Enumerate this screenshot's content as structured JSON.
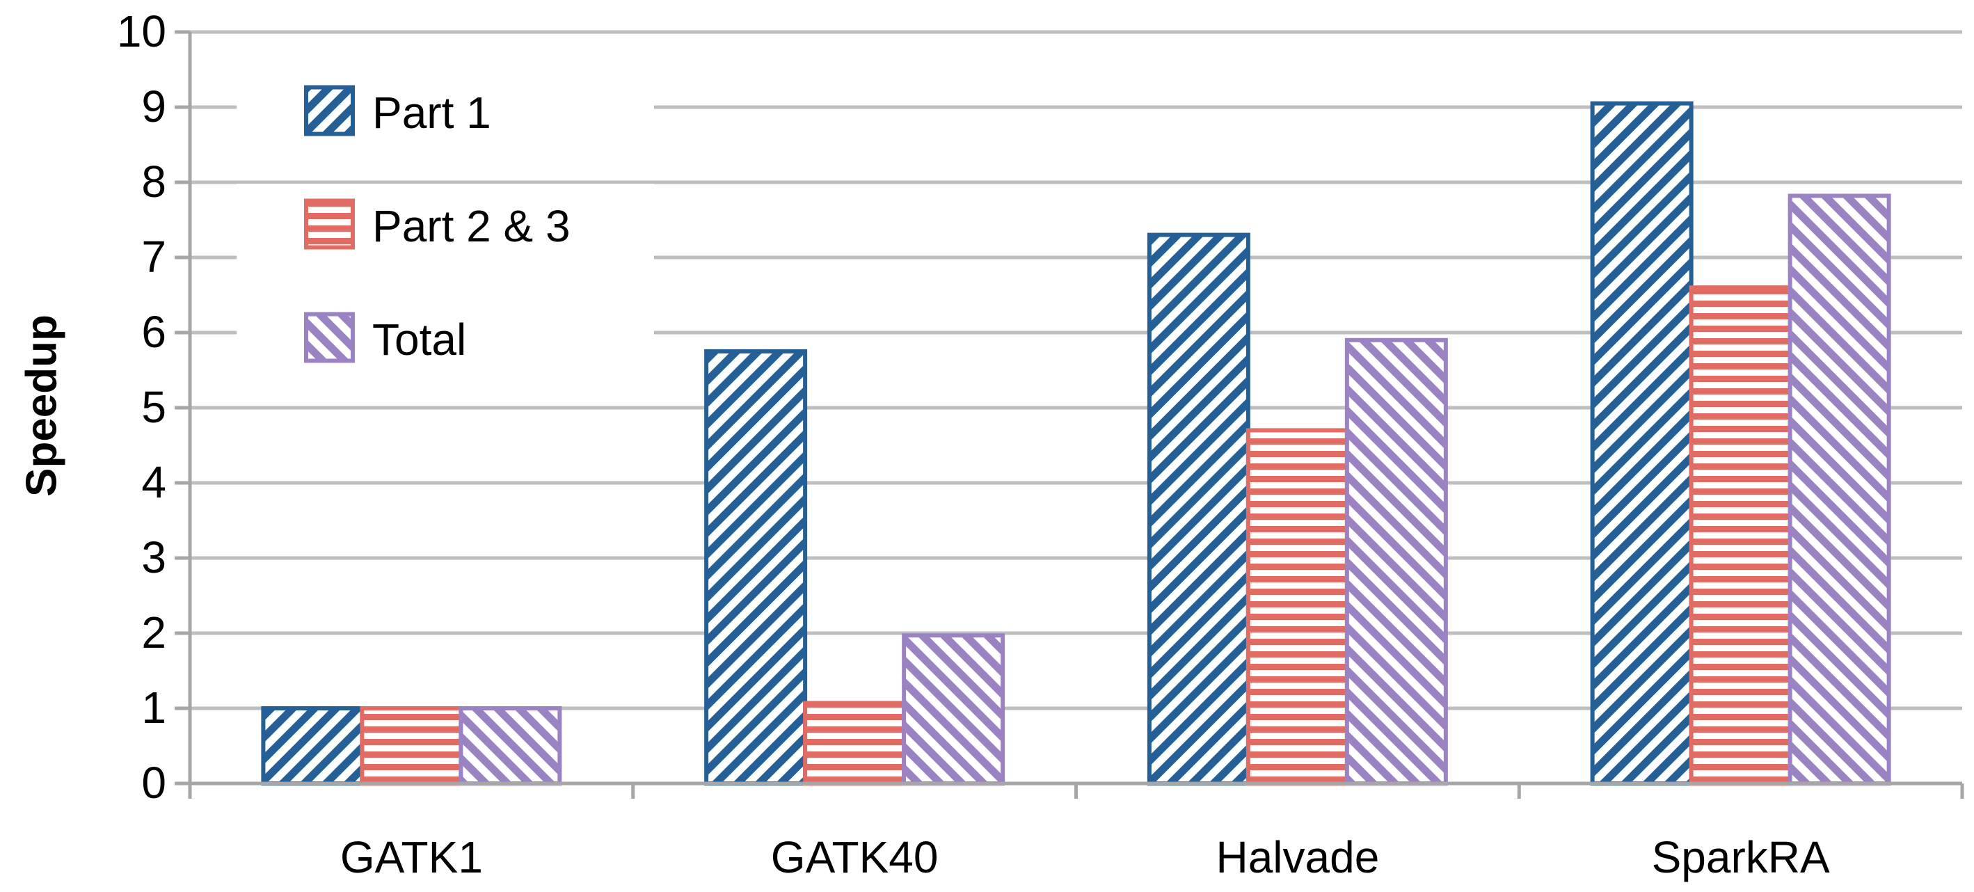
{
  "chart_data": {
    "type": "bar",
    "title": "",
    "xlabel": "",
    "ylabel": "Speedup",
    "ylim": [
      0,
      10
    ],
    "yticks": [
      0,
      1,
      2,
      3,
      4,
      5,
      6,
      7,
      8,
      9,
      10
    ],
    "grid": true,
    "legend_position": "top-left",
    "categories": [
      "GATK1",
      "GATK40",
      "Halvade",
      "SparkRA"
    ],
    "series": [
      {
        "name": "Part 1",
        "values": [
          1.0,
          5.75,
          7.3,
          9.05
        ],
        "color": "#245f96",
        "pattern": "diagonal-down"
      },
      {
        "name": "Part 2 & 3",
        "values": [
          1.0,
          1.07,
          4.7,
          6.6
        ],
        "color": "#e06c63",
        "pattern": "horizontal"
      },
      {
        "name": "Total",
        "values": [
          1.0,
          1.97,
          5.9,
          7.82
        ],
        "color": "#9b83c3",
        "pattern": "diagonal-up"
      }
    ]
  }
}
